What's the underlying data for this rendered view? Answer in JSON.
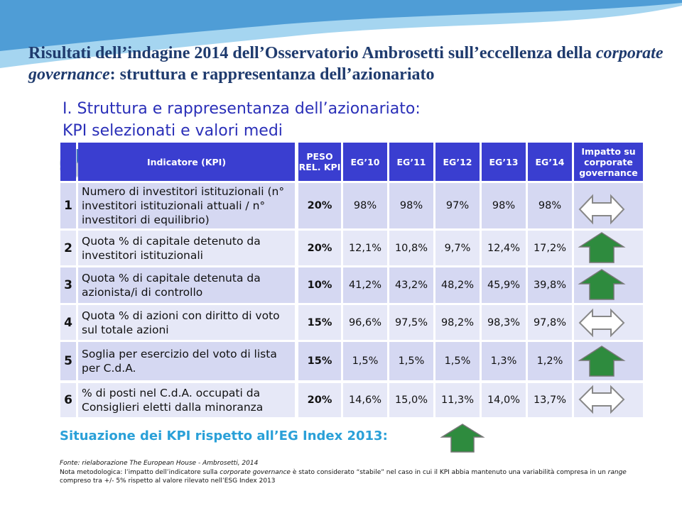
{
  "title": {
    "part1": "Risultati dell’indagine 2014 dell’Osservatorio Ambrosetti sull’eccellenza della",
    "italic": "corporate governance",
    "part2": ": struttura e rappresentanza dell’azionariato"
  },
  "heading": [
    "I. Struttura e rappresentanza dell’azionariato:",
    "KPI selezionati e valori medi"
  ],
  "table": {
    "header": [
      "Indicatore (KPI)",
      "PESO REL. KPI",
      "EG’10",
      "EG’11",
      "EG’12",
      "EG’13",
      "EG’14",
      "Impatto su corporate governance"
    ],
    "rows": [
      [
        "1",
        "Numero di investitori istituzionali (n° investitori istituzionali attuali / n° investitori di equilibrio)",
        "20%",
        "98%",
        "98%",
        "97%",
        "98%",
        "98%"
      ],
      [
        "2",
        "Quota % di capitale detenuto da investitori istituzionali",
        "20%",
        "12,1%",
        "10,8%",
        "9,7%",
        "12,4%",
        "17,2%"
      ],
      [
        "3",
        "Quota % di capitale detenuta da azionista/i di controllo",
        "10%",
        "41,2%",
        "43,2%",
        "48,2%",
        "45,9%",
        "39,8%"
      ],
      [
        "4",
        "Quota % di azioni con diritto di voto sul totale azioni",
        "15%",
        "96,6%",
        "97,5%",
        "98,2%",
        "98,3%",
        "97,8%"
      ],
      [
        "5",
        "Soglia per esercizio del voto di lista per C.d.A.",
        "15%",
        "1,5%",
        "1,5%",
        "1,5%",
        "1,3%",
        "1,2%"
      ],
      [
        "6",
        "% di posti nel C.d.A. occupati da Consiglieri eletti dalla minoranza",
        "20%",
        "14,6%",
        "15,0%",
        "11,3%",
        "14,0%",
        "13,7%"
      ]
    ]
  },
  "summary": "Situazione dei KPI rispetto all’EG Index 2013:",
  "source": "Fonte: rielaborazione The European House - Ambrosetti, 2014",
  "note": {
    "part1": "Nota metodologica: l’impatto dell’indicatore sulla ",
    "italic1": "corporate governance",
    "part2": " è stato considerato “stabile” nel caso in cui il KPI abbia mantenuto una variabilità compresa in un ",
    "italic2": "range",
    "part3": " compreso tra +/- 5% rispetto al valore rilevato nell’ESG Index 2013"
  }
}
